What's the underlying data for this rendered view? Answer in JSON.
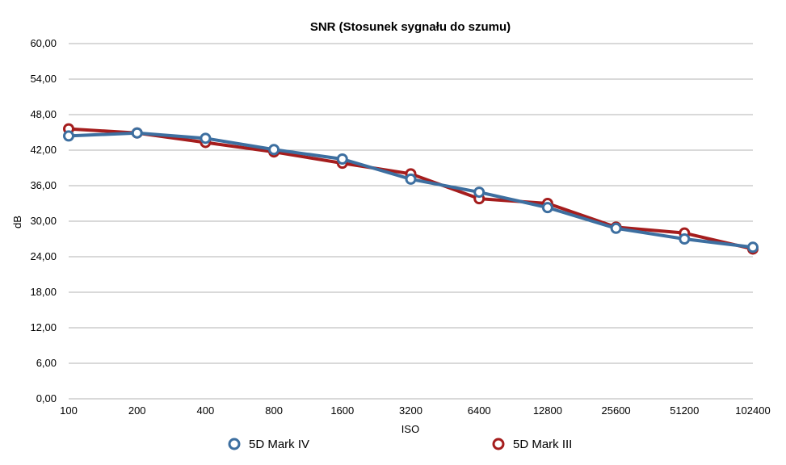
{
  "chart_data": {
    "type": "line",
    "title": "SNR (Stosunek sygnału do szumu)",
    "xlabel": "ISO",
    "ylabel": "dB",
    "categories": [
      "100",
      "200",
      "400",
      "800",
      "1600",
      "3200",
      "6400",
      "12800",
      "25600",
      "51200",
      "102400"
    ],
    "ylim": [
      0,
      60
    ],
    "yticks": [
      "0,00",
      "6,00",
      "12,00",
      "18,00",
      "24,00",
      "30,00",
      "36,00",
      "42,00",
      "48,00",
      "54,00",
      "60,00"
    ],
    "ytick_values": [
      0,
      6,
      12,
      18,
      24,
      30,
      36,
      42,
      48,
      54,
      60
    ],
    "grid": true,
    "legend_position": "bottom",
    "series": [
      {
        "name": "5D Mark III",
        "color": "#a51d1d",
        "values": [
          45.6,
          44.9,
          43.3,
          41.7,
          39.8,
          38.0,
          33.8,
          33.0,
          29.0,
          28.0,
          25.3
        ]
      },
      {
        "name": "5D Mark IV",
        "color": "#3d6fa0",
        "values": [
          44.4,
          44.9,
          44.0,
          42.1,
          40.5,
          37.1,
          34.9,
          32.3,
          28.8,
          27.0,
          25.6
        ]
      }
    ]
  }
}
